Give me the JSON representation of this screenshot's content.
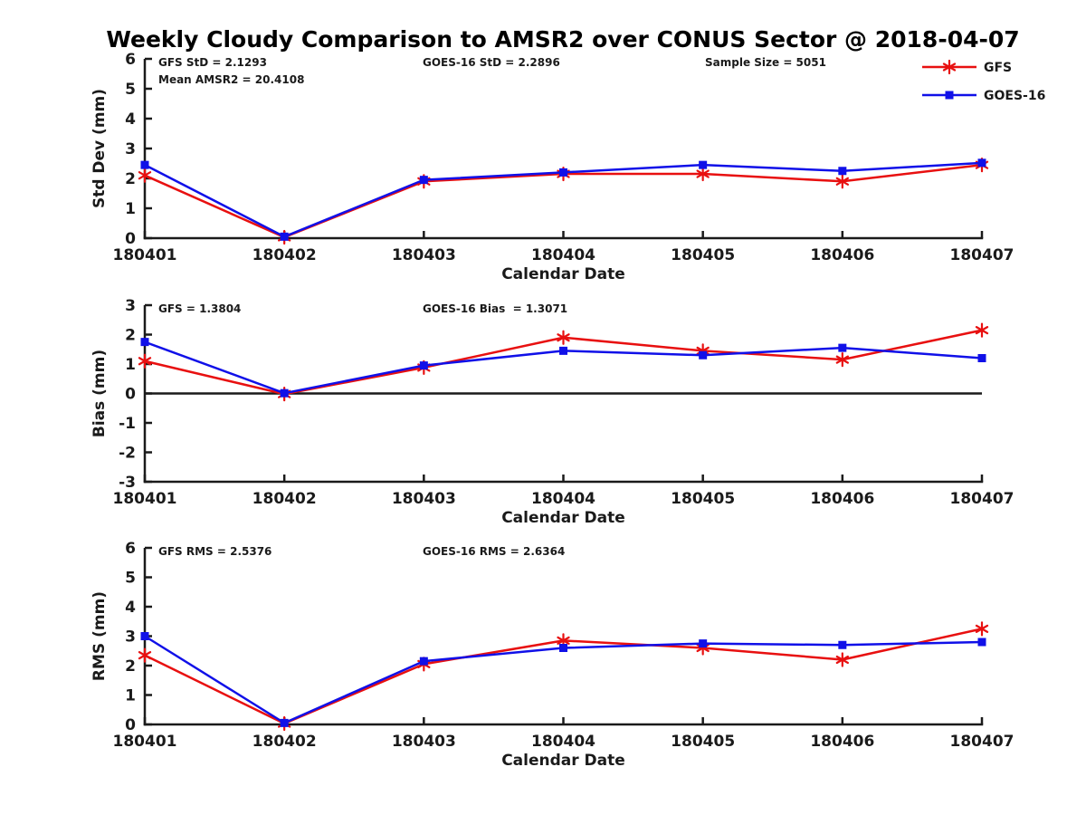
{
  "title": "Weekly Cloudy Comparison to AMSR2 over CONUS Sector @ 2018-04-07",
  "style": {
    "gfs_color": "#e81010",
    "goes_color": "#1010e8",
    "axis_color": "#1a1a1a",
    "zero_line_color": "#1a1a1a",
    "background": "#ffffff"
  },
  "legend": {
    "position": "top-right",
    "entries": [
      {
        "label": "GFS",
        "marker": "asterisk",
        "color": "#e81010"
      },
      {
        "label": "GOES-16",
        "marker": "square",
        "color": "#1010e8"
      }
    ]
  },
  "chart_data": [
    {
      "type": "line",
      "name": "std-dev",
      "ylabel": "Std Dev (mm)",
      "xlabel": "Calendar Date",
      "ylim": [
        0,
        6
      ],
      "yticks": [
        0,
        1,
        2,
        3,
        4,
        5,
        6
      ],
      "grid": false,
      "zero_line": false,
      "categories": [
        "180401",
        "180402",
        "180403",
        "180404",
        "180405",
        "180406",
        "180407"
      ],
      "annotations": [
        {
          "text": "GFS StD = 2.1293",
          "dx": 15,
          "row": 0
        },
        {
          "text": "Mean AMSR2 = 20.4108",
          "dx": 15,
          "row": 1
        },
        {
          "text": "GOES-16 StD = 2.2896",
          "dx": 307,
          "row": 0
        },
        {
          "text": "Sample Size = 5051",
          "dx": 619,
          "row": 0
        }
      ],
      "series": [
        {
          "name": "GFS",
          "marker": "asterisk",
          "color": "#e81010",
          "values": [
            2.1,
            0.03,
            1.9,
            2.15,
            2.15,
            1.9,
            2.45
          ]
        },
        {
          "name": "GOES-16",
          "marker": "square",
          "color": "#1010e8",
          "values": [
            2.45,
            0.05,
            1.95,
            2.2,
            2.45,
            2.25,
            2.52
          ]
        }
      ]
    },
    {
      "type": "line",
      "name": "bias",
      "ylabel": "Bias (mm)",
      "xlabel": "Calendar Date",
      "ylim": [
        -3,
        3
      ],
      "yticks": [
        -3,
        -2,
        -1,
        0,
        1,
        2,
        3
      ],
      "grid": false,
      "zero_line": true,
      "categories": [
        "180401",
        "180402",
        "180403",
        "180404",
        "180405",
        "180406",
        "180407"
      ],
      "annotations": [
        {
          "text": "GFS = 1.3804",
          "dx": 15,
          "row": 0
        },
        {
          "text": "GOES-16 Bias  = 1.3071",
          "dx": 307,
          "row": 0
        }
      ],
      "series": [
        {
          "name": "GFS",
          "marker": "asterisk",
          "color": "#e81010",
          "values": [
            1.1,
            -0.02,
            0.88,
            1.9,
            1.45,
            1.15,
            2.15
          ]
        },
        {
          "name": "GOES-16",
          "marker": "square",
          "color": "#1010e8",
          "values": [
            1.75,
            0.01,
            0.95,
            1.45,
            1.3,
            1.55,
            1.2
          ]
        }
      ]
    },
    {
      "type": "line",
      "name": "rms",
      "ylabel": "RMS (mm)",
      "xlabel": "Calendar Date",
      "ylim": [
        0,
        6
      ],
      "yticks": [
        0,
        1,
        2,
        3,
        4,
        5,
        6
      ],
      "grid": false,
      "zero_line": false,
      "categories": [
        "180401",
        "180402",
        "180403",
        "180404",
        "180405",
        "180406",
        "180407"
      ],
      "annotations": [
        {
          "text": "GFS RMS = 2.5376",
          "dx": 15,
          "row": 0
        },
        {
          "text": "GOES-16 RMS = 2.6364",
          "dx": 307,
          "row": 0
        }
      ],
      "series": [
        {
          "name": "GFS",
          "marker": "asterisk",
          "color": "#e81010",
          "values": [
            2.35,
            0.03,
            2.05,
            2.85,
            2.6,
            2.2,
            3.25
          ]
        },
        {
          "name": "GOES-16",
          "marker": "square",
          "color": "#1010e8",
          "values": [
            3.0,
            0.05,
            2.15,
            2.6,
            2.75,
            2.7,
            2.8
          ]
        }
      ]
    }
  ]
}
